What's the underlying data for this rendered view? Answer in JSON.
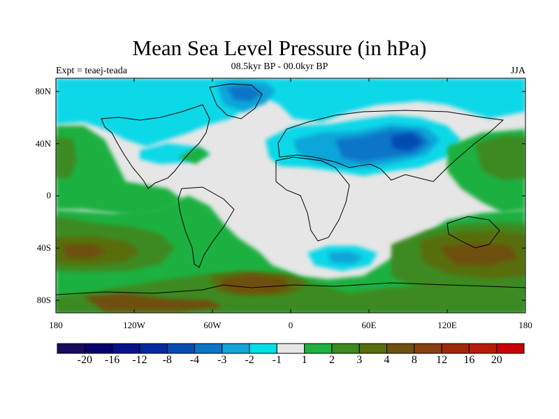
{
  "title": "Mean Sea Level Pressure (in hPa)",
  "subtitle": "08.5kyr BP - 00.0kyr BP",
  "experiment": "Expt = teaej-teada",
  "season": "JJA",
  "lat_labels": [
    "80N",
    "40N",
    "0",
    "40S",
    "80S"
  ],
  "lon_labels": [
    "180",
    "120W",
    "60W",
    "0",
    "60E",
    "120E",
    "180"
  ],
  "colorbar": {
    "labels": [
      "-20",
      "-16",
      "-12",
      "-8",
      "-4",
      "-3",
      "-2",
      "-1",
      "1",
      "2",
      "3",
      "4",
      "8",
      "12",
      "16",
      "20"
    ],
    "colors": [
      "#1a0a5c",
      "#07006e",
      "#05128c",
      "#0428a0",
      "#064bb0",
      "#0a74c8",
      "#10a6d8",
      "#00e0e8",
      "#e6e6e6",
      "#1fb040",
      "#3c8a20",
      "#596e10",
      "#6e5010",
      "#884010",
      "#a02808",
      "#b81c08",
      "#c80008"
    ]
  },
  "colors": {
    "neutral": "#e6e6e6",
    "cyan": "#10d8e8",
    "light_blue": "#10a6d8",
    "mid_blue": "#0a74c8",
    "dark_blue": "#064bb0",
    "green": "#1fb040",
    "olive": "#3c8a20",
    "dark_olive": "#596e10",
    "brown": "#6e5010",
    "dark_brown": "#884010"
  }
}
